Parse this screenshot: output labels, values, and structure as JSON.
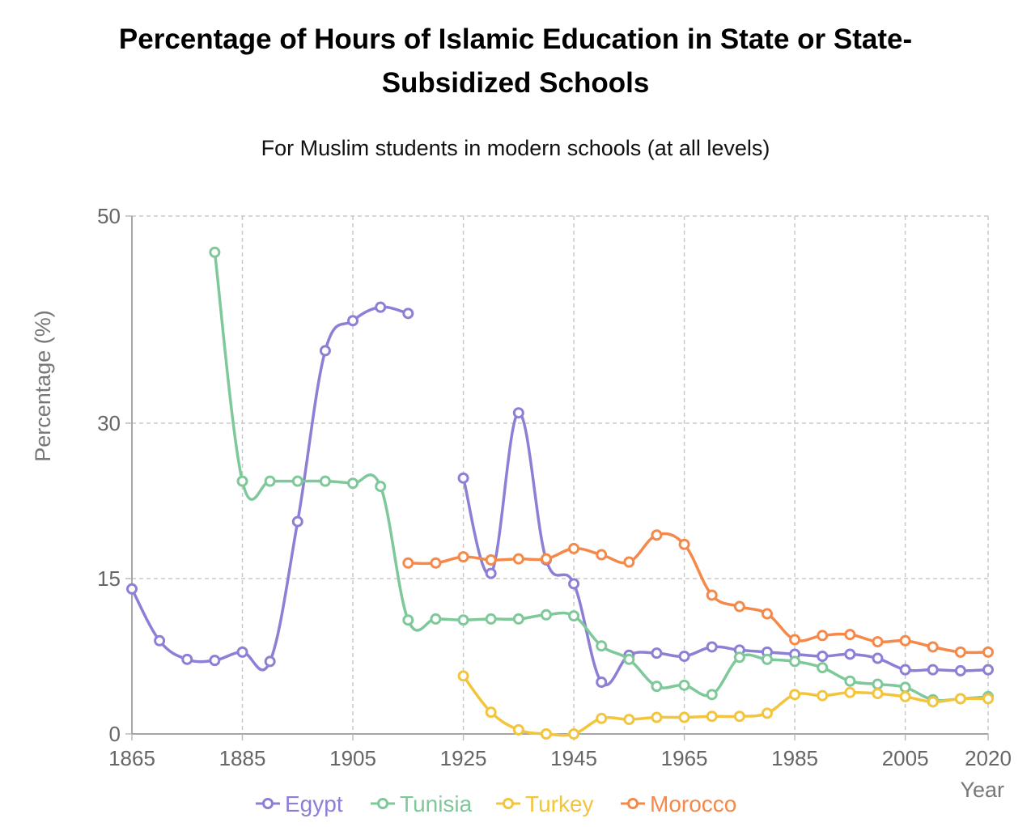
{
  "chart_data": {
    "type": "line",
    "title": "Percentage of Hours of Islamic Education in State or State-Subsidized Schools",
    "subtitle": "For Muslim students in modern schools (at all levels)",
    "xlabel": "Year",
    "ylabel": "Percentage (%)",
    "xlim": [
      1865,
      2020
    ],
    "ylim": [
      0,
      50
    ],
    "xticks": [
      "1865",
      "1885",
      "1905",
      "1925",
      "1945",
      "1965",
      "1985",
      "2005",
      "2020"
    ],
    "yticks": [
      "0",
      "15",
      "30",
      "50"
    ],
    "grid": true,
    "legend_position": "bottom",
    "series": [
      {
        "name": "Egypt",
        "color": "#8b7fd6",
        "points": [
          [
            [
              1865,
              14.0
            ],
            [
              1870,
              9.0
            ],
            [
              1875,
              7.2
            ],
            [
              1880,
              7.1
            ],
            [
              1885,
              7.9
            ],
            [
              1890,
              7.0
            ],
            [
              1895,
              20.5
            ],
            [
              1900,
              37.0
            ],
            [
              1905,
              39.9
            ],
            [
              1910,
              41.2
            ],
            [
              1915,
              40.6
            ]
          ],
          [
            [
              1925,
              24.7
            ],
            [
              1930,
              15.5
            ],
            [
              1935,
              31.0
            ],
            [
              1940,
              16.8
            ],
            [
              1945,
              14.5
            ],
            [
              1950,
              5.0
            ],
            [
              1955,
              7.6
            ],
            [
              1960,
              7.8
            ],
            [
              1965,
              7.5
            ],
            [
              1970,
              8.4
            ],
            [
              1975,
              8.1
            ],
            [
              1980,
              7.9
            ],
            [
              1985,
              7.7
            ],
            [
              1990,
              7.5
            ],
            [
              1995,
              7.7
            ],
            [
              2000,
              7.3
            ],
            [
              2005,
              6.2
            ],
            [
              2010,
              6.2
            ],
            [
              2015,
              6.1
            ],
            [
              2020,
              6.2
            ]
          ]
        ]
      },
      {
        "name": "Tunisia",
        "color": "#7ec89a",
        "points": [
          [
            [
              1880,
              46.5
            ],
            [
              1885,
              24.4
            ],
            [
              1890,
              24.4
            ],
            [
              1895,
              24.4
            ],
            [
              1900,
              24.4
            ],
            [
              1905,
              24.2
            ],
            [
              1910,
              23.9
            ],
            [
              1915,
              11.0
            ],
            [
              1920,
              11.1
            ],
            [
              1925,
              11.0
            ],
            [
              1930,
              11.1
            ],
            [
              1935,
              11.1
            ],
            [
              1940,
              11.5
            ],
            [
              1945,
              11.4
            ],
            [
              1950,
              8.5
            ],
            [
              1955,
              7.2
            ],
            [
              1960,
              4.6
            ],
            [
              1965,
              4.7
            ],
            [
              1970,
              3.8
            ],
            [
              1975,
              7.4
            ],
            [
              1980,
              7.2
            ],
            [
              1985,
              7.0
            ],
            [
              1990,
              6.4
            ],
            [
              1995,
              5.1
            ],
            [
              2000,
              4.8
            ],
            [
              2005,
              4.5
            ],
            [
              2010,
              3.3
            ],
            [
              2015,
              3.4
            ],
            [
              2020,
              3.6
            ]
          ]
        ]
      },
      {
        "name": "Turkey",
        "color": "#f2c53d",
        "points": [
          [
            [
              1925,
              5.6
            ],
            [
              1930,
              2.1
            ],
            [
              1935,
              0.4
            ],
            [
              1940,
              0.0
            ],
            [
              1945,
              0.0
            ],
            [
              1950,
              1.5
            ],
            [
              1955,
              1.4
            ],
            [
              1960,
              1.6
            ],
            [
              1965,
              1.6
            ],
            [
              1970,
              1.7
            ],
            [
              1975,
              1.7
            ],
            [
              1980,
              2.0
            ],
            [
              1985,
              3.8
            ],
            [
              1990,
              3.7
            ],
            [
              1995,
              4.0
            ],
            [
              2000,
              3.9
            ],
            [
              2005,
              3.6
            ],
            [
              2010,
              3.1
            ],
            [
              2015,
              3.4
            ],
            [
              2020,
              3.4
            ]
          ]
        ]
      },
      {
        "name": "Morocco",
        "color": "#f5894a",
        "points": [
          [
            [
              1915,
              16.5
            ],
            [
              1920,
              16.5
            ],
            [
              1925,
              17.1
            ],
            [
              1930,
              16.8
            ],
            [
              1935,
              16.9
            ],
            [
              1940,
              16.9
            ],
            [
              1945,
              17.9
            ],
            [
              1950,
              17.3
            ],
            [
              1955,
              16.6
            ],
            [
              1960,
              19.2
            ],
            [
              1965,
              18.3
            ],
            [
              1970,
              13.4
            ],
            [
              1975,
              12.3
            ],
            [
              1980,
              11.6
            ],
            [
              1985,
              9.1
            ],
            [
              1990,
              9.5
            ],
            [
              1995,
              9.6
            ],
            [
              2000,
              8.9
            ],
            [
              2005,
              9.0
            ],
            [
              2010,
              8.4
            ],
            [
              2015,
              7.9
            ],
            [
              2020,
              7.9
            ]
          ]
        ]
      }
    ]
  }
}
